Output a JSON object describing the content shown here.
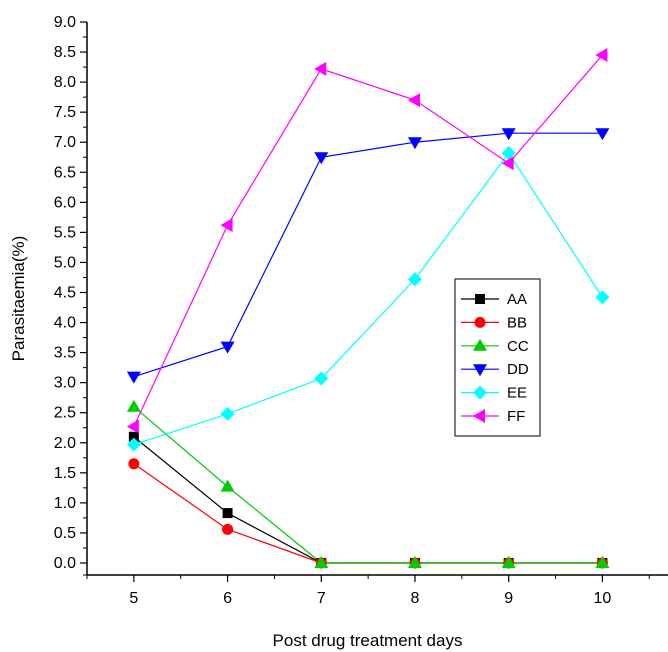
{
  "chart_data": {
    "type": "line",
    "title": "",
    "xlabel": "Post drug treatment days",
    "ylabel": "Parasitaemia(%)",
    "x": [
      5,
      6,
      7,
      8,
      9,
      10
    ],
    "xlim": [
      4.5,
      10.7
    ],
    "ylim": [
      -0.2,
      9.0
    ],
    "x_ticks": [
      "5",
      "6",
      "7",
      "8",
      "9",
      "10"
    ],
    "y_ticks": [
      "0.0",
      "0.5",
      "1.0",
      "1.5",
      "2.0",
      "2.5",
      "3.0",
      "3.5",
      "4.0",
      "4.5",
      "5.0",
      "5.5",
      "6.0",
      "6.5",
      "7.0",
      "7.5",
      "8.0",
      "8.5",
      "9.0"
    ],
    "grid": false,
    "legend_position": "center-right",
    "series": [
      {
        "name": "AA",
        "color": "#000000",
        "marker": "square",
        "values": [
          2.1,
          0.83,
          0.0,
          0.0,
          0.0,
          0.0
        ]
      },
      {
        "name": "BB",
        "color": "#ff0000",
        "marker": "circle",
        "values": [
          1.65,
          0.56,
          0.0,
          0.0,
          0.0,
          0.0
        ]
      },
      {
        "name": "CC",
        "color": "#00cc00",
        "marker": "triangle-up",
        "values": [
          2.6,
          1.27,
          0.0,
          0.0,
          0.0,
          0.0
        ]
      },
      {
        "name": "DD",
        "color": "#0000ff",
        "marker": "triangle-down",
        "values": [
          3.1,
          3.6,
          6.75,
          7.0,
          7.15,
          7.15
        ]
      },
      {
        "name": "EE",
        "color": "#00ffff",
        "marker": "diamond",
        "values": [
          1.97,
          2.48,
          3.07,
          4.72,
          6.82,
          4.42
        ]
      },
      {
        "name": "FF",
        "color": "#ff00ff",
        "marker": "triangle-left",
        "values": [
          2.27,
          5.62,
          8.22,
          7.7,
          6.65,
          8.45
        ]
      }
    ]
  }
}
